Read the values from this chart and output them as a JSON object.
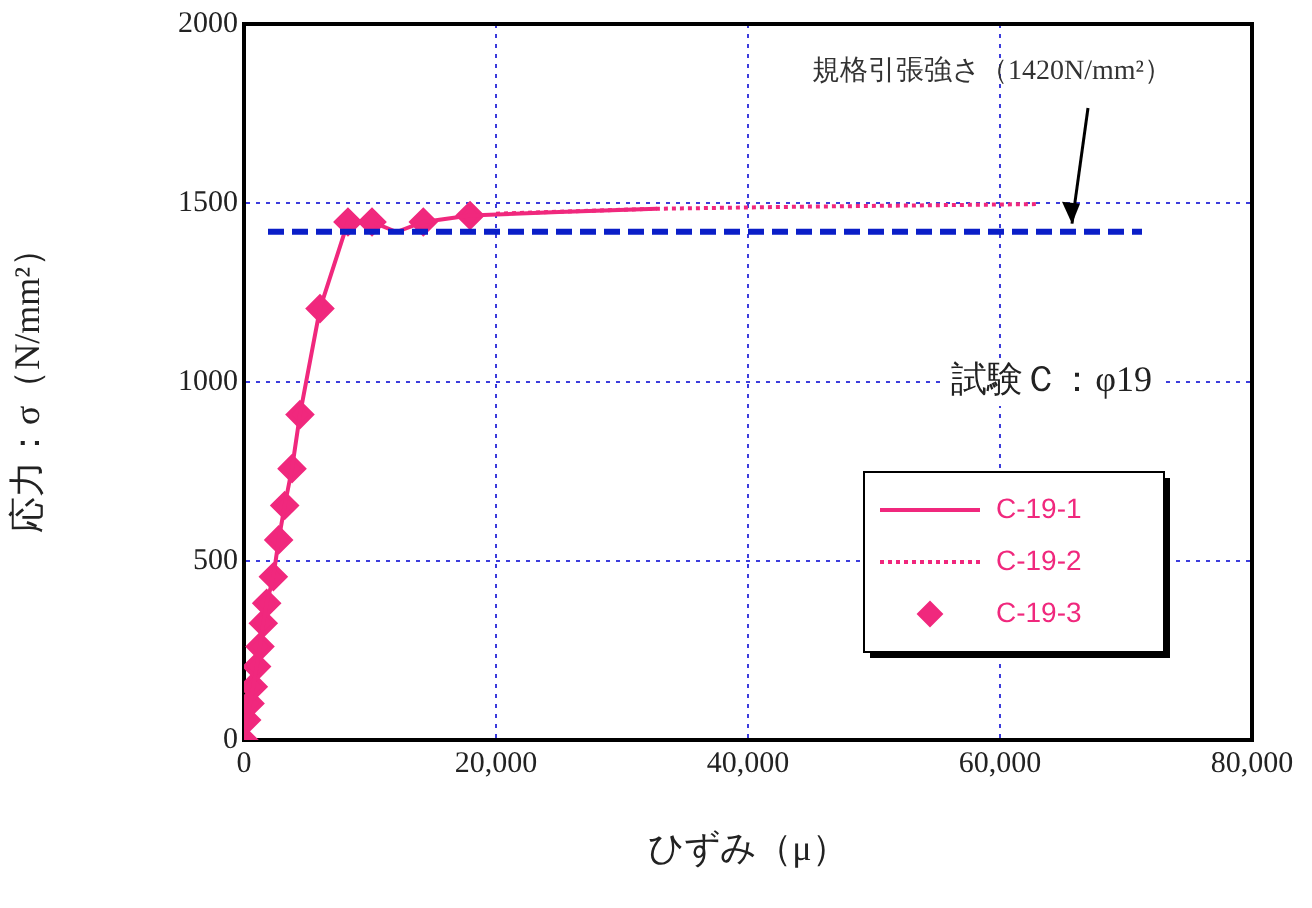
{
  "chart_data": {
    "type": "line",
    "xlabel": "ひずみ（μ）",
    "ylabel": "応力：σ（N/mm²）",
    "xlim": [
      0,
      80000
    ],
    "xticks": [
      {
        "value": 0,
        "label": "0"
      },
      {
        "value": 20000,
        "label": "20,000"
      },
      {
        "value": 40000,
        "label": "40,000"
      },
      {
        "value": 60000,
        "label": "60,000"
      },
      {
        "value": 80000,
        "label": "80,000"
      }
    ],
    "ylim": [
      0,
      2000
    ],
    "yticks": [
      0,
      500,
      1000,
      1500,
      2000
    ],
    "grid": true,
    "legend": "bottom right",
    "series": [
      {
        "name": "C-19-1",
        "color": "#f0287d",
        "marker": "none",
        "line_style": "solid",
        "x": [
          0,
          210,
          480,
          740,
          1000,
          1270,
          1530,
          1800,
          2330,
          2750,
          3230,
          3810,
          4440,
          6030,
          8250,
          10160,
          12110,
          14230,
          17940,
          25000,
          32750
        ],
        "values": [
          0,
          56,
          102,
          149,
          205,
          261,
          326,
          382,
          456,
          559,
          655,
          758,
          909,
          1205,
          1447,
          1447,
          1419,
          1447,
          1465,
          1475,
          1484
        ]
      },
      {
        "name": "C-19-2",
        "color": "#f0287d",
        "marker": "none",
        "line_style": "dotted",
        "x": [
          20000,
          32750,
          45000,
          63000
        ],
        "values": [
          1470,
          1484,
          1490,
          1497
        ]
      },
      {
        "name": "C-19-3",
        "type": "scatter",
        "color": "#f0287d",
        "marker": "diamond",
        "x": [
          0,
          210,
          480,
          740,
          1000,
          1270,
          1530,
          1800,
          2330,
          2750,
          3230,
          3810,
          4440,
          6030,
          8250,
          10160,
          14230,
          17940
        ],
        "values": [
          0,
          56,
          102,
          149,
          205,
          261,
          326,
          382,
          456,
          559,
          655,
          758,
          909,
          1205,
          1447,
          1447,
          1447,
          1465
        ]
      }
    ],
    "ref_lines": [
      {
        "axis": "y",
        "value": 1420,
        "label": "規格引張強さ（1420N/mm²）",
        "color": "#0a1ec8",
        "line_style": "dashed"
      }
    ],
    "annotations": [
      "試験Ｃ：φ19"
    ]
  }
}
